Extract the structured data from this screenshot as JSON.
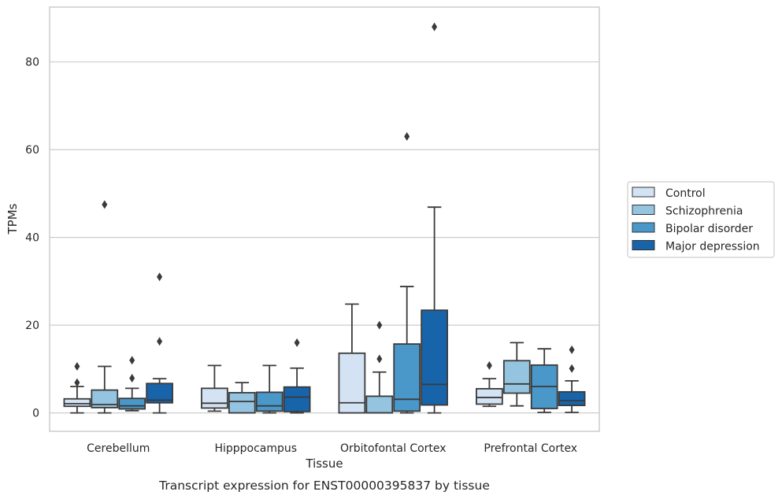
{
  "chart_data": {
    "type": "box",
    "xlabel": "Tissue",
    "ylabel": "TPMs",
    "caption": "Transcript expression for ENST00000395837 by tissue",
    "categories": [
      "Cerebellum",
      "Hipppocampus",
      "Orbitofontal Cortex",
      "Prefrontal Cortex"
    ],
    "ylim": [
      -4.2,
      92.5
    ],
    "yticks": [
      0,
      20,
      40,
      60,
      80
    ],
    "grid": "horizontal",
    "legend_position": "right",
    "colors": {
      "Control": "#d3e3f3",
      "Schizophrenia": "#94c4df",
      "Bipolar disorder": "#4a98c9",
      "Major depression": "#1764ab",
      "box_edge": "#3a3a3a",
      "grid": "#cccccc",
      "axes_edge": "#cccccc"
    },
    "series": [
      {
        "name": "Control",
        "boxes": [
          {
            "whislo": 0,
            "q1": 1.5,
            "med": 2.1,
            "q3": 3.2,
            "whishi": 6.0,
            "fliers": [
              6.9,
              10.6
            ]
          },
          {
            "whislo": 0.4,
            "q1": 1.1,
            "med": 2.2,
            "q3": 5.6,
            "whishi": 10.8,
            "fliers": []
          },
          {
            "whislo": 0,
            "q1": 0,
            "med": 2.3,
            "q3": 13.6,
            "whishi": 24.8,
            "fliers": []
          },
          {
            "whislo": 1.5,
            "q1": 2.0,
            "med": 3.5,
            "q3": 5.5,
            "whishi": 7.8,
            "fliers": [
              10.8
            ]
          }
        ]
      },
      {
        "name": "Schizophrenia",
        "boxes": [
          {
            "whislo": 0,
            "q1": 1.2,
            "med": 1.9,
            "q3": 5.2,
            "whishi": 10.6,
            "fliers": [
              47.5
            ]
          },
          {
            "whislo": 0,
            "q1": 0,
            "med": 2.6,
            "q3": 4.6,
            "whishi": 6.9,
            "fliers": []
          },
          {
            "whislo": 0,
            "q1": 0,
            "med": 0,
            "q3": 3.8,
            "whishi": 9.3,
            "fliers": [
              12.3,
              20.0
            ]
          },
          {
            "whislo": 1.6,
            "q1": 4.5,
            "med": 6.6,
            "q3": 11.9,
            "whishi": 16.0,
            "fliers": []
          }
        ]
      },
      {
        "name": "Bipolar disorder",
        "boxes": [
          {
            "whislo": 0.5,
            "q1": 0.9,
            "med": 1.6,
            "q3": 3.3,
            "whishi": 5.6,
            "fliers": [
              7.9,
              12.0
            ]
          },
          {
            "whislo": 0,
            "q1": 0.4,
            "med": 1.6,
            "q3": 4.7,
            "whishi": 10.8,
            "fliers": []
          },
          {
            "whislo": 0,
            "q1": 0.4,
            "med": 3.1,
            "q3": 15.7,
            "whishi": 28.8,
            "fliers": [
              63.0
            ]
          },
          {
            "whislo": 0.1,
            "q1": 1.0,
            "med": 6.0,
            "q3": 10.9,
            "whishi": 14.6,
            "fliers": []
          }
        ]
      },
      {
        "name": "Major depression",
        "boxes": [
          {
            "whislo": 0,
            "q1": 2.3,
            "med": 2.9,
            "q3": 6.7,
            "whishi": 7.8,
            "fliers": [
              16.3,
              31.0
            ]
          },
          {
            "whislo": 0,
            "q1": 0.3,
            "med": 3.6,
            "q3": 5.9,
            "whishi": 10.2,
            "fliers": [
              16.0
            ]
          },
          {
            "whislo": 0,
            "q1": 1.8,
            "med": 6.5,
            "q3": 23.4,
            "whishi": 46.9,
            "fliers": [
              88.0
            ]
          },
          {
            "whislo": 0.1,
            "q1": 1.7,
            "med": 2.8,
            "q3": 4.8,
            "whishi": 7.3,
            "fliers": [
              10.1,
              14.4
            ]
          }
        ]
      }
    ]
  }
}
